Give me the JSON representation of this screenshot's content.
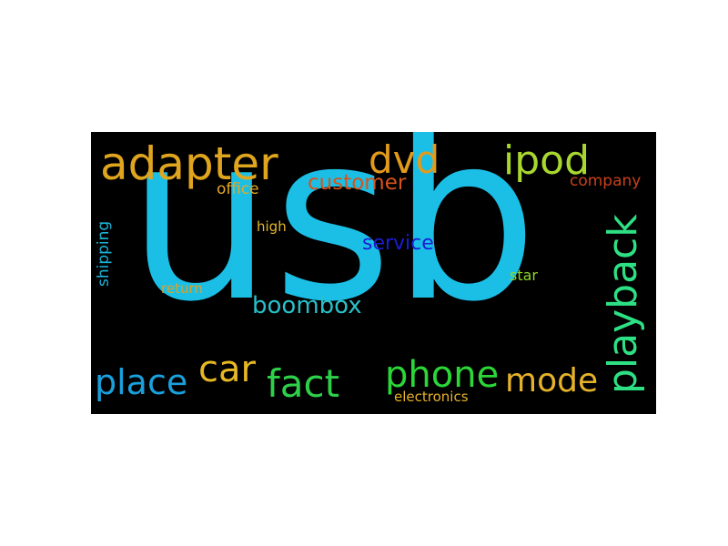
{
  "words": {
    "usb": {
      "text": "usb",
      "color": "#1bbfe6"
    },
    "adapter": {
      "text": "adapter",
      "color": "#e0a51e"
    },
    "dvd": {
      "text": "dvd",
      "color": "#e29a1c"
    },
    "ipod": {
      "text": "ipod",
      "color": "#a8d830"
    },
    "playback": {
      "text": "playback",
      "color": "#2ee084"
    },
    "customer": {
      "text": "customer",
      "color": "#d6541a"
    },
    "office": {
      "text": "office",
      "color": "#e6a822"
    },
    "company": {
      "text": "company",
      "color": "#c8401a"
    },
    "shipping": {
      "text": "shipping",
      "color": "#1bb4d8"
    },
    "high": {
      "text": "high",
      "color": "#e6b82a"
    },
    "service": {
      "text": "service",
      "color": "#1c1cd6"
    },
    "star": {
      "text": "star",
      "color": "#8ed62a"
    },
    "return": {
      "text": "return",
      "color": "#e0a020"
    },
    "boombox": {
      "text": "boombox",
      "color": "#28c0c8"
    },
    "car": {
      "text": "car",
      "color": "#e6b824"
    },
    "place": {
      "text": "place",
      "color": "#1aa0dc"
    },
    "fact": {
      "text": "fact",
      "color": "#2ed04a"
    },
    "phone": {
      "text": "phone",
      "color": "#2cd638"
    },
    "mode": {
      "text": "mode",
      "color": "#e6b22a"
    },
    "electronics": {
      "text": "electronics",
      "color": "#e6b22a"
    }
  }
}
